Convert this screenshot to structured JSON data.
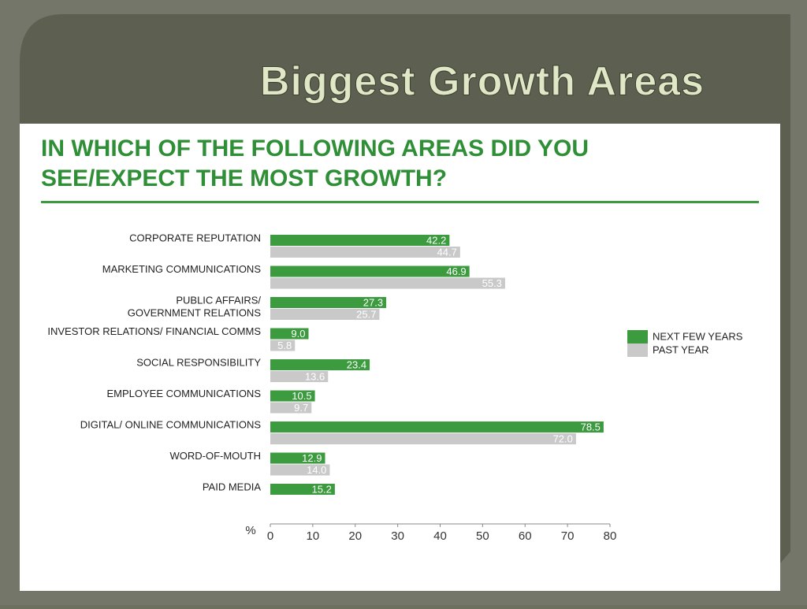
{
  "slide_title": "Biggest Growth Areas",
  "chart_data": {
    "type": "hbar",
    "title": [
      "IN WHICH OF THE FOLLOWING AREAS DID YOU",
      "SEE/EXPECT THE MOST GROWTH?"
    ],
    "xlabel": "%",
    "categories": [
      [
        "CORPORATE REPUTATION"
      ],
      [
        "MARKETING COMMUNICATIONS"
      ],
      [
        "PUBLIC AFFAIRS/",
        "GOVERNMENT RELATIONS"
      ],
      [
        "INVESTOR RELATIONS/ FINANCIAL COMMS"
      ],
      [
        "SOCIAL RESPONSIBILITY"
      ],
      [
        "EMPLOYEE COMMUNICATIONS"
      ],
      [
        "DIGITAL/ ONLINE COMMUNICATIONS"
      ],
      [
        "WORD-OF-MOUTH"
      ],
      [
        "PAID MEDIA"
      ]
    ],
    "series": [
      {
        "name": "NEXT FEW YEARS",
        "color": "#3c9a3f",
        "values": [
          42.2,
          46.9,
          27.3,
          9.0,
          23.4,
          10.5,
          78.5,
          12.9,
          15.2
        ],
        "value_labels": [
          "42.2",
          "46.9",
          "27.3",
          "9.0",
          "23.4",
          "10.5",
          "78.5",
          "12.9",
          "15.2"
        ]
      },
      {
        "name": "PAST YEAR",
        "color": "#c9c9c9",
        "values": [
          44.7,
          55.3,
          25.7,
          5.8,
          13.6,
          9.7,
          72.0,
          14.0,
          null
        ],
        "value_labels": [
          "44.7",
          "55.3",
          "25.7",
          "5.8",
          "13.6",
          "9.7",
          "72.0",
          "14.0",
          null
        ]
      }
    ],
    "xlim": [
      0,
      80
    ],
    "xticks": [
      0,
      10,
      20,
      30,
      40,
      50,
      60,
      70,
      80
    ],
    "legend": "right"
  }
}
